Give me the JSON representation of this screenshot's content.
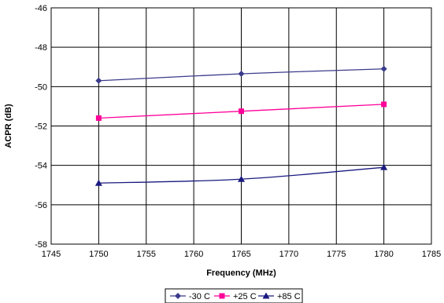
{
  "chart_data": {
    "type": "line",
    "xlabel": "Frequency (MHz)",
    "ylabel": "ACPR (dB)",
    "xlim": [
      1745,
      1785
    ],
    "ylim": [
      -58,
      -46
    ],
    "xticks": [
      1745,
      1750,
      1755,
      1760,
      1765,
      1770,
      1775,
      1780,
      1785
    ],
    "yticks": [
      -46,
      -48,
      -50,
      -52,
      -54,
      -56,
      -58
    ],
    "grid": true,
    "legend_position": "bottom",
    "x": [
      1750,
      1765,
      1780
    ],
    "series": [
      {
        "name": "-30 C",
        "values": [
          -49.7,
          -49.35,
          -49.1
        ],
        "color": "#3b3b8c",
        "marker": "diamond"
      },
      {
        "name": "+25 C",
        "values": [
          -51.6,
          -51.25,
          -50.9
        ],
        "color": "#ff0099",
        "marker": "square"
      },
      {
        "name": "+85 C",
        "values": [
          -54.9,
          -54.7,
          -54.1
        ],
        "color": "#1a1a80",
        "marker": "triangle"
      }
    ]
  }
}
